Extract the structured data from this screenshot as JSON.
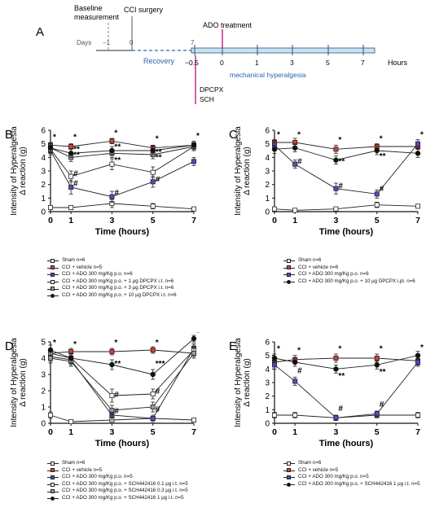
{
  "timeline": {
    "label": "A",
    "baseline_label_1": "Baseline",
    "baseline_label_2": "measurement",
    "surgery_label": "CCI surgery",
    "ado_label": "ADO treatment",
    "days_label": "Days",
    "day_ticks": [
      "−1",
      "0",
      "7"
    ],
    "recovery_label": "Recovery",
    "hour_ticks": [
      "−0.5",
      "0",
      "1",
      "3",
      "5",
      "7"
    ],
    "hours_label": "Hours",
    "dpcpx_label": "DPCPX",
    "sch_label": "SCH",
    "hyperalgesia_label": "mechanical hyperalgesia",
    "colors": {
      "treatment": "#c42a8a",
      "axis": "#2f4f7f",
      "recovery": "#2b63b0",
      "bar_fill": "#c9e4ef"
    }
  },
  "colors": {
    "sham": "#ffffff",
    "vehicle": "#e03c31",
    "ado": "#4a4fc4",
    "black": "#111111"
  },
  "chart_data": [
    {
      "panel": "B",
      "type": "line",
      "ylabel_1": "Intensity of Hyperalgesia",
      "ylabel_2": "Δ reaction (g)",
      "xlabel": "Time (hours)",
      "x": [
        0,
        1,
        3,
        5,
        7
      ],
      "xticks": [
        "0",
        "1",
        "3",
        "5",
        "7"
      ],
      "yticks": [
        "0",
        "1",
        "2",
        "3",
        "4",
        "5",
        "6"
      ],
      "ylim": [
        0,
        6
      ],
      "series": [
        {
          "name": "Sham n=6",
          "marker": "#ffffff",
          "values": [
            0.3,
            0.3,
            0.6,
            0.4,
            0.2
          ],
          "err": [
            0.1,
            0.1,
            0.3,
            0.2,
            0.1
          ]
        },
        {
          "name": "CCI + vehicle n=5",
          "marker": "#e03c31",
          "values": [
            4.9,
            4.8,
            5.2,
            4.7,
            4.9
          ],
          "err": [
            0.2,
            0.2,
            0.2,
            0.2,
            0.2
          ]
        },
        {
          "name": "CCI + ADO 300 mg/Kg p.o. n=6",
          "marker": "#4a4fc4",
          "values": [
            4.5,
            1.8,
            1.1,
            2.2,
            3.7
          ],
          "err": [
            0.3,
            0.5,
            0.4,
            0.4,
            0.3
          ]
        },
        {
          "name": "CCI + ADO 300 mg/Kg p.o. + 1 µg DPCPX i.t. n=6",
          "marker": "#ffffff",
          "values": [
            4.6,
            2.6,
            3.5,
            2.9,
            4.8
          ],
          "err": [
            0.3,
            0.4,
            0.4,
            0.4,
            0.3
          ]
        },
        {
          "name": "CCI + ADO 300 mg/Kg p.o. + 3 µg DPCPX i.t. n=6",
          "marker": "#9a9a9a",
          "values": [
            4.7,
            4.0,
            4.3,
            4.2,
            4.8
          ],
          "err": [
            0.3,
            0.3,
            0.3,
            0.3,
            0.3
          ]
        },
        {
          "name": "CCI + ADO 300 mg/Kg p.o. + 10 µg DPCPX i.t. n=6",
          "marker": "#111111",
          "values": [
            4.7,
            4.3,
            4.5,
            4.5,
            4.9
          ],
          "err": [
            0.3,
            0.3,
            0.3,
            0.3,
            0.3
          ]
        }
      ],
      "annotations": [
        {
          "x": 1,
          "y": 4.4,
          "text": "**"
        },
        {
          "x": 1,
          "y": 4.0,
          "text": "**"
        },
        {
          "x": 1,
          "y": 2.6,
          "text": "#"
        },
        {
          "x": 1,
          "y": 1.9,
          "text": "#"
        },
        {
          "x": 3,
          "y": 4.6,
          "text": "**"
        },
        {
          "x": 3,
          "y": 3.6,
          "text": "**"
        },
        {
          "x": 3,
          "y": 1.2,
          "text": "#"
        },
        {
          "x": 5,
          "y": 4.2,
          "text": "**"
        },
        {
          "x": 5,
          "y": 3.8,
          "text": "**"
        },
        {
          "x": 5,
          "y": 2.2,
          "text": "#"
        },
        {
          "x": 0,
          "y": 5.3,
          "text": "*"
        },
        {
          "x": 1,
          "y": 5.3,
          "text": "*"
        },
        {
          "x": 3,
          "y": 5.6,
          "text": "*"
        },
        {
          "x": 5,
          "y": 5.2,
          "text": "*"
        },
        {
          "x": 7,
          "y": 5.4,
          "text": "*"
        }
      ]
    },
    {
      "panel": "C",
      "type": "line",
      "ylabel_1": "Intensity of Hyperalgesia",
      "ylabel_2": "Δ reaction (g)",
      "xlabel": "Time (hours)",
      "x": [
        0,
        1,
        3,
        5,
        7
      ],
      "xticks": [
        "0",
        "1",
        "3",
        "5",
        "7"
      ],
      "yticks": [
        "0",
        "1",
        "2",
        "3",
        "4",
        "5",
        "6"
      ],
      "ylim": [
        0,
        6
      ],
      "series": [
        {
          "name": "Sham n=6",
          "marker": "#ffffff",
          "values": [
            0.2,
            0.1,
            0.2,
            0.5,
            0.4
          ],
          "err": [
            0.1,
            0.1,
            0.1,
            0.2,
            0.1
          ]
        },
        {
          "name": "CCI + vehicle n=6",
          "marker": "#e03c31",
          "values": [
            5.1,
            5.1,
            4.6,
            4.8,
            4.8
          ],
          "err": [
            0.2,
            0.3,
            0.3,
            0.2,
            0.2
          ]
        },
        {
          "name": "CCI + ADO 300 mg/Kg p.o. n=6",
          "marker": "#4a4fc4",
          "values": [
            4.9,
            3.5,
            1.7,
            1.3,
            5.0
          ],
          "err": [
            0.3,
            0.3,
            0.4,
            0.3,
            0.3
          ]
        },
        {
          "name": "CCI + ADO 300 mg/Kg p.o. + 10 µg DPCPX i.pl. n=6",
          "marker": "#111111",
          "values": [
            4.6,
            4.7,
            3.8,
            4.5,
            4.3
          ],
          "err": [
            0.3,
            0.3,
            0.3,
            0.3,
            0.3
          ]
        }
      ],
      "annotations": [
        {
          "x": 0,
          "y": 5.5,
          "text": "*"
        },
        {
          "x": 1,
          "y": 5.5,
          "text": "*"
        },
        {
          "x": 3,
          "y": 5.1,
          "text": "*"
        },
        {
          "x": 5,
          "y": 5.2,
          "text": "*"
        },
        {
          "x": 7,
          "y": 5.5,
          "text": "*"
        },
        {
          "x": 1,
          "y": 3.5,
          "text": "#"
        },
        {
          "x": 3,
          "y": 3.5,
          "text": "**"
        },
        {
          "x": 5,
          "y": 3.9,
          "text": "**"
        },
        {
          "x": 3,
          "y": 1.7,
          "text": "#"
        },
        {
          "x": 5,
          "y": 1.5,
          "text": "#"
        }
      ]
    },
    {
      "panel": "D",
      "type": "line",
      "ylabel_1": "Intensity of Hyperalgesia",
      "ylabel_2": "Δ reaction (g)",
      "xlabel": "Time (hours)",
      "x": [
        0,
        1,
        3,
        5,
        7
      ],
      "xticks": [
        "0",
        "1",
        "3",
        "5",
        "7"
      ],
      "yticks": [
        "0",
        "1",
        "2",
        "3",
        "4",
        "5"
      ],
      "ylim": [
        0,
        5
      ],
      "series": [
        {
          "name": "Sham n=6",
          "marker": "#ffffff",
          "values": [
            0.5,
            0.1,
            0.2,
            0.3,
            0.2
          ],
          "err": [
            0.2,
            0.1,
            0.1,
            0.1,
            0.1
          ]
        },
        {
          "name": "CCI + vehicle n=5",
          "marker": "#e03c31",
          "values": [
            4.3,
            4.4,
            4.4,
            4.5,
            4.3
          ],
          "err": [
            0.2,
            0.2,
            0.2,
            0.2,
            0.2
          ]
        },
        {
          "name": "CCI + ADO 300 mg/Kg p.o. n=5",
          "marker": "#4a4fc4",
          "values": [
            4.1,
            3.9,
            0.5,
            0.3,
            4.6
          ],
          "err": [
            0.3,
            0.3,
            0.3,
            0.2,
            0.3
          ]
        },
        {
          "name": "CCI + ADO 300 mg/Kg p.o. + SCH442416 0.1 µg i.t. n=5",
          "marker": "#ffffff",
          "values": [
            4.3,
            4.0,
            1.7,
            1.8,
            4.5
          ],
          "err": [
            0.3,
            0.3,
            0.4,
            0.3,
            0.3
          ]
        },
        {
          "name": "CCI + ADO 300 mg/Kg p.o. + SCH442416 0.3 µg i.t. n=5",
          "marker": "#9a9a9a",
          "values": [
            4.0,
            3.8,
            0.8,
            1.0,
            4.3
          ],
          "err": [
            0.3,
            0.3,
            0.3,
            0.3,
            0.3
          ]
        },
        {
          "name": "CCI + ADO 300 mg/Kg p.o. + SCH442416 1 µg i.t. n=5",
          "marker": "#111111",
          "values": [
            4.5,
            4.0,
            3.6,
            3.0,
            5.2
          ],
          "err": [
            0.3,
            0.3,
            0.3,
            0.3,
            0.2
          ]
        }
      ],
      "annotations": [
        {
          "x": 0,
          "y": 4.8,
          "text": "*"
        },
        {
          "x": 1,
          "y": 4.7,
          "text": "*"
        },
        {
          "x": 3,
          "y": 4.8,
          "text": "*"
        },
        {
          "x": 5,
          "y": 4.8,
          "text": "*"
        },
        {
          "x": 7,
          "y": 5.4,
          "text": "*"
        },
        {
          "x": 3,
          "y": 3.5,
          "text": "**"
        },
        {
          "x": 5,
          "y": 3.5,
          "text": "***"
        },
        {
          "x": 3,
          "y": 1.6,
          "text": "#"
        },
        {
          "x": 3,
          "y": 0.6,
          "text": "#"
        },
        {
          "x": 5,
          "y": 1.8,
          "text": "#"
        },
        {
          "x": 5,
          "y": 0.7,
          "text": "#"
        }
      ]
    },
    {
      "panel": "E",
      "type": "line",
      "ylabel_1": "Intensity of Hyperalgesia",
      "ylabel_2": "Δ reaction (g)",
      "xlabel": "Time (hours)",
      "x": [
        0,
        1,
        3,
        5,
        7
      ],
      "xticks": [
        "0",
        "1",
        "3",
        "5",
        "7"
      ],
      "yticks": [
        "0",
        "1",
        "2",
        "3",
        "4",
        "5",
        "6"
      ],
      "ylim": [
        0,
        6
      ],
      "series": [
        {
          "name": "Sham n=6",
          "marker": "#ffffff",
          "values": [
            0.6,
            0.6,
            0.4,
            0.6,
            0.6
          ],
          "err": [
            0.2,
            0.2,
            0.1,
            0.2,
            0.2
          ]
        },
        {
          "name": "CCI + vehicle n=5",
          "marker": "#e03c31",
          "values": [
            4.5,
            4.7,
            4.8,
            4.8,
            4.6
          ],
          "err": [
            0.3,
            0.3,
            0.3,
            0.3,
            0.3
          ]
        },
        {
          "name": "CCI + ADO 300 mg/Kg p.o. n=5",
          "marker": "#4a4fc4",
          "values": [
            4.3,
            3.1,
            0.4,
            0.7,
            4.5
          ],
          "err": [
            0.3,
            0.3,
            0.2,
            0.2,
            0.3
          ]
        },
        {
          "name": "CCI + ADO 300 mg/Kg p.o. + SCH442416 1 µg i.t. n=5",
          "marker": "#111111",
          "values": [
            4.8,
            4.5,
            4.0,
            4.3,
            5.0
          ],
          "err": [
            0.3,
            0.3,
            0.3,
            0.3,
            0.3
          ]
        }
      ],
      "annotations": [
        {
          "x": 0,
          "y": 5.3,
          "text": "*"
        },
        {
          "x": 1,
          "y": 5.2,
          "text": "*"
        },
        {
          "x": 3,
          "y": 5.3,
          "text": "*"
        },
        {
          "x": 5,
          "y": 5.3,
          "text": "*"
        },
        {
          "x": 7,
          "y": 5.4,
          "text": "*"
        },
        {
          "x": 3,
          "y": 3.3,
          "text": "**"
        },
        {
          "x": 5,
          "y": 3.6,
          "text": "**"
        },
        {
          "x": 1,
          "y": 3.7,
          "text": "#"
        },
        {
          "x": 3,
          "y": 0.9,
          "text": "#"
        },
        {
          "x": 5,
          "y": 1.2,
          "text": "#"
        }
      ]
    }
  ]
}
